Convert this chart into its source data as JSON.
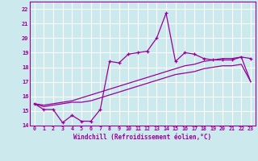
{
  "xlabel": "Windchill (Refroidissement éolien,°C)",
  "background_color": "#cce9ed",
  "grid_color": "#ffffff",
  "line_color": "#990099",
  "x_hours": [
    0,
    1,
    2,
    3,
    4,
    5,
    6,
    7,
    8,
    9,
    10,
    11,
    12,
    13,
    14,
    15,
    16,
    17,
    18,
    19,
    20,
    21,
    22,
    23
  ],
  "y_main": [
    15.5,
    15.1,
    15.1,
    14.2,
    14.7,
    14.3,
    14.3,
    15.1,
    18.4,
    18.3,
    18.9,
    19.0,
    19.1,
    20.0,
    21.7,
    18.4,
    19.0,
    18.9,
    18.6,
    18.5,
    18.5,
    18.5,
    18.7,
    18.6
  ],
  "y_line2": [
    15.5,
    15.3,
    15.4,
    15.5,
    15.6,
    15.6,
    15.7,
    15.9,
    16.1,
    16.3,
    16.5,
    16.7,
    16.9,
    17.1,
    17.3,
    17.5,
    17.6,
    17.7,
    17.9,
    18.0,
    18.1,
    18.1,
    18.2,
    17.0
  ],
  "y_line3": [
    15.5,
    15.4,
    15.5,
    15.6,
    15.7,
    15.9,
    16.1,
    16.3,
    16.5,
    16.7,
    16.9,
    17.1,
    17.3,
    17.5,
    17.7,
    17.9,
    18.1,
    18.2,
    18.4,
    18.5,
    18.6,
    18.6,
    18.7,
    17.0
  ],
  "ylim": [
    14.0,
    22.5
  ],
  "xlim": [
    -0.5,
    23.5
  ],
  "yticks": [
    14,
    15,
    16,
    17,
    18,
    19,
    20,
    21,
    22
  ],
  "xticks": [
    0,
    1,
    2,
    3,
    4,
    5,
    6,
    7,
    8,
    9,
    10,
    11,
    12,
    13,
    14,
    15,
    16,
    17,
    18,
    19,
    20,
    21,
    22,
    23
  ]
}
